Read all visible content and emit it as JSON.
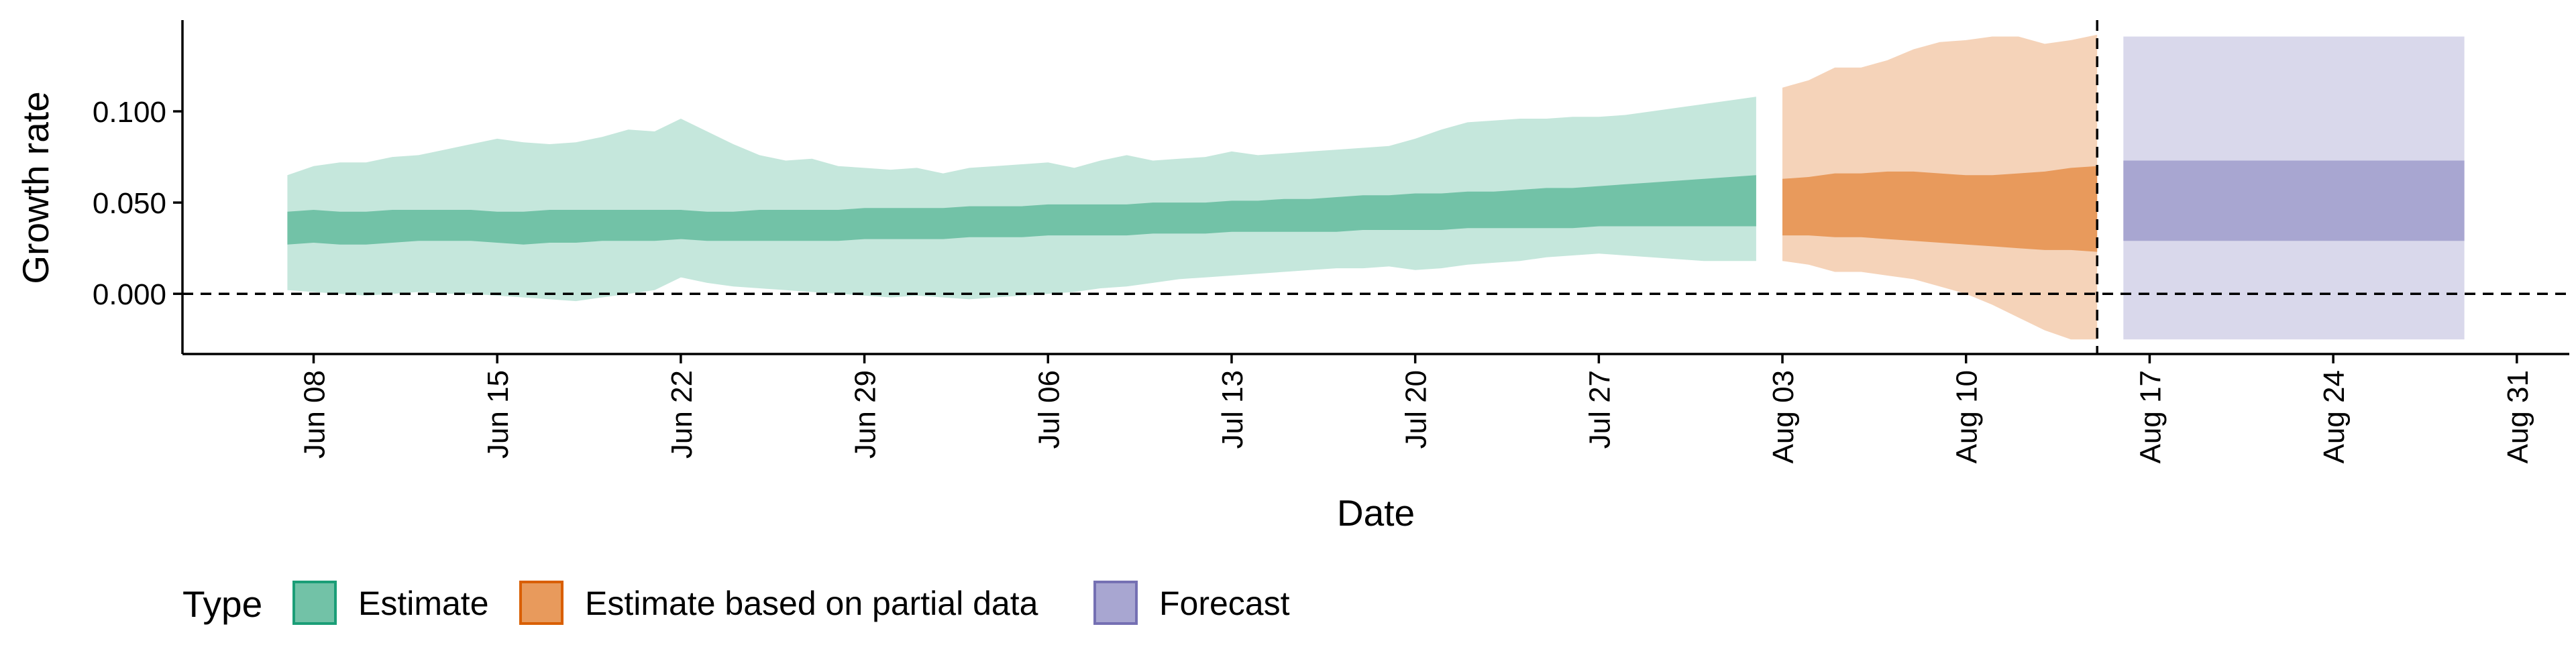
{
  "chart_data": {
    "type": "area",
    "xlabel": "Date",
    "ylabel": "Growth rate",
    "xlim": [
      "2020-06-03",
      "2020-09-02"
    ],
    "ylim": [
      -0.033,
      0.15
    ],
    "x_ticks": [
      {
        "date": "2020-06-08",
        "label": "Jun 08"
      },
      {
        "date": "2020-06-15",
        "label": "Jun 15"
      },
      {
        "date": "2020-06-22",
        "label": "Jun 22"
      },
      {
        "date": "2020-06-29",
        "label": "Jun 29"
      },
      {
        "date": "2020-07-06",
        "label": "Jul 06"
      },
      {
        "date": "2020-07-13",
        "label": "Jul 13"
      },
      {
        "date": "2020-07-20",
        "label": "Jul 20"
      },
      {
        "date": "2020-07-27",
        "label": "Jul 27"
      },
      {
        "date": "2020-08-03",
        "label": "Aug 03"
      },
      {
        "date": "2020-08-10",
        "label": "Aug 10"
      },
      {
        "date": "2020-08-17",
        "label": "Aug 17"
      },
      {
        "date": "2020-08-24",
        "label": "Aug 24"
      },
      {
        "date": "2020-08-31",
        "label": "Aug 31"
      }
    ],
    "y_ticks": [
      {
        "value": 0.0,
        "label": "0.000"
      },
      {
        "value": 0.05,
        "label": "0.050"
      },
      {
        "value": 0.1,
        "label": "0.100"
      }
    ],
    "reference_lines": {
      "horizontal_y": 0.0,
      "vertical_date": "2020-08-15"
    },
    "grid": false,
    "legend": {
      "title": "Type",
      "position": "bottom-left",
      "items": [
        {
          "label": "Estimate",
          "fill": "#72c2a7",
          "stroke": "#1b9e77"
        },
        {
          "label": "Estimate based on partial data",
          "fill": "#e89a5c",
          "stroke": "#d95f02"
        },
        {
          "label": "Forecast",
          "fill": "#a8a6d1",
          "stroke": "#7570b3"
        }
      ]
    },
    "series": [
      {
        "name": "Estimate",
        "outer_color": "#c5e7dc",
        "inner_color": "#72c2a7",
        "x": [
          "2020-06-07",
          "2020-06-08",
          "2020-06-09",
          "2020-06-10",
          "2020-06-11",
          "2020-06-12",
          "2020-06-13",
          "2020-06-14",
          "2020-06-15",
          "2020-06-16",
          "2020-06-17",
          "2020-06-18",
          "2020-06-19",
          "2020-06-20",
          "2020-06-21",
          "2020-06-22",
          "2020-06-23",
          "2020-06-24",
          "2020-06-25",
          "2020-06-26",
          "2020-06-27",
          "2020-06-28",
          "2020-06-29",
          "2020-06-30",
          "2020-07-01",
          "2020-07-02",
          "2020-07-03",
          "2020-07-04",
          "2020-07-05",
          "2020-07-06",
          "2020-07-07",
          "2020-07-08",
          "2020-07-09",
          "2020-07-10",
          "2020-07-11",
          "2020-07-12",
          "2020-07-13",
          "2020-07-14",
          "2020-07-15",
          "2020-07-16",
          "2020-07-17",
          "2020-07-18",
          "2020-07-19",
          "2020-07-20",
          "2020-07-21",
          "2020-07-22",
          "2020-07-23",
          "2020-07-24",
          "2020-07-25",
          "2020-07-26",
          "2020-07-27",
          "2020-07-28",
          "2020-07-29",
          "2020-07-30",
          "2020-07-31",
          "2020-08-01",
          "2020-08-02"
        ],
        "lower90": [
          0.002,
          0.001,
          0.0,
          -0.001,
          0.0,
          0.001,
          0.0,
          0.0,
          -0.001,
          -0.002,
          -0.003,
          -0.004,
          -0.002,
          0.0,
          0.002,
          0.009,
          0.006,
          0.004,
          0.003,
          0.002,
          0.001,
          0.0,
          -0.001,
          -0.002,
          -0.001,
          -0.002,
          -0.003,
          -0.002,
          -0.001,
          0.0,
          0.001,
          0.003,
          0.004,
          0.006,
          0.008,
          0.009,
          0.01,
          0.011,
          0.012,
          0.013,
          0.014,
          0.014,
          0.015,
          0.013,
          0.014,
          0.016,
          0.017,
          0.018,
          0.02,
          0.021,
          0.022,
          0.021,
          0.02,
          0.019,
          0.018,
          0.018,
          0.018
        ],
        "lower50": [
          0.027,
          0.028,
          0.027,
          0.027,
          0.028,
          0.029,
          0.029,
          0.029,
          0.028,
          0.027,
          0.028,
          0.028,
          0.029,
          0.029,
          0.029,
          0.03,
          0.029,
          0.029,
          0.029,
          0.029,
          0.029,
          0.029,
          0.03,
          0.03,
          0.03,
          0.03,
          0.031,
          0.031,
          0.031,
          0.032,
          0.032,
          0.032,
          0.032,
          0.033,
          0.033,
          0.033,
          0.034,
          0.034,
          0.034,
          0.034,
          0.034,
          0.035,
          0.035,
          0.035,
          0.035,
          0.036,
          0.036,
          0.036,
          0.036,
          0.036,
          0.037,
          0.037,
          0.037,
          0.037,
          0.037,
          0.037,
          0.037
        ],
        "upper50": [
          0.045,
          0.046,
          0.045,
          0.045,
          0.046,
          0.046,
          0.046,
          0.046,
          0.045,
          0.045,
          0.046,
          0.046,
          0.046,
          0.046,
          0.046,
          0.046,
          0.045,
          0.045,
          0.046,
          0.046,
          0.046,
          0.046,
          0.047,
          0.047,
          0.047,
          0.047,
          0.048,
          0.048,
          0.048,
          0.049,
          0.049,
          0.049,
          0.049,
          0.05,
          0.05,
          0.05,
          0.051,
          0.051,
          0.052,
          0.052,
          0.053,
          0.054,
          0.054,
          0.055,
          0.055,
          0.056,
          0.056,
          0.057,
          0.058,
          0.058,
          0.059,
          0.06,
          0.061,
          0.062,
          0.063,
          0.064,
          0.065
        ],
        "upper90": [
          0.065,
          0.07,
          0.072,
          0.072,
          0.075,
          0.076,
          0.079,
          0.082,
          0.085,
          0.083,
          0.082,
          0.083,
          0.086,
          0.09,
          0.089,
          0.096,
          0.089,
          0.082,
          0.076,
          0.073,
          0.074,
          0.07,
          0.069,
          0.068,
          0.069,
          0.066,
          0.069,
          0.07,
          0.071,
          0.072,
          0.069,
          0.073,
          0.076,
          0.073,
          0.074,
          0.075,
          0.078,
          0.076,
          0.077,
          0.078,
          0.079,
          0.08,
          0.081,
          0.085,
          0.09,
          0.094,
          0.095,
          0.096,
          0.096,
          0.097,
          0.097,
          0.098,
          0.1,
          0.102,
          0.104,
          0.106,
          0.108
        ]
      },
      {
        "name": "Estimate based on partial data",
        "outer_color": "#f5d3b9",
        "inner_color": "#e89a5c",
        "x": [
          "2020-08-03",
          "2020-08-04",
          "2020-08-05",
          "2020-08-06",
          "2020-08-07",
          "2020-08-08",
          "2020-08-09",
          "2020-08-10",
          "2020-08-11",
          "2020-08-12",
          "2020-08-13",
          "2020-08-14",
          "2020-08-15"
        ],
        "lower90": [
          0.018,
          0.016,
          0.012,
          0.012,
          0.01,
          0.008,
          0.004,
          0.0,
          -0.006,
          -0.013,
          -0.02,
          -0.025,
          -0.025
        ],
        "lower50": [
          0.032,
          0.032,
          0.031,
          0.031,
          0.03,
          0.029,
          0.028,
          0.027,
          0.026,
          0.025,
          0.024,
          0.024,
          0.023
        ],
        "upper50": [
          0.063,
          0.064,
          0.066,
          0.066,
          0.067,
          0.067,
          0.066,
          0.065,
          0.065,
          0.066,
          0.067,
          0.069,
          0.07
        ],
        "upper90": [
          0.113,
          0.117,
          0.124,
          0.124,
          0.128,
          0.134,
          0.138,
          0.139,
          0.141,
          0.141,
          0.137,
          0.139,
          0.142
        ]
      },
      {
        "name": "Forecast",
        "outer_color": "#d9d8eb",
        "inner_color": "#a8a6d1",
        "x": [
          "2020-08-16",
          "2020-08-29"
        ],
        "lower90": [
          -0.025,
          -0.025
        ],
        "lower50": [
          0.029,
          0.029
        ],
        "upper50": [
          0.073,
          0.073
        ],
        "upper90": [
          0.141,
          0.141
        ]
      }
    ]
  }
}
